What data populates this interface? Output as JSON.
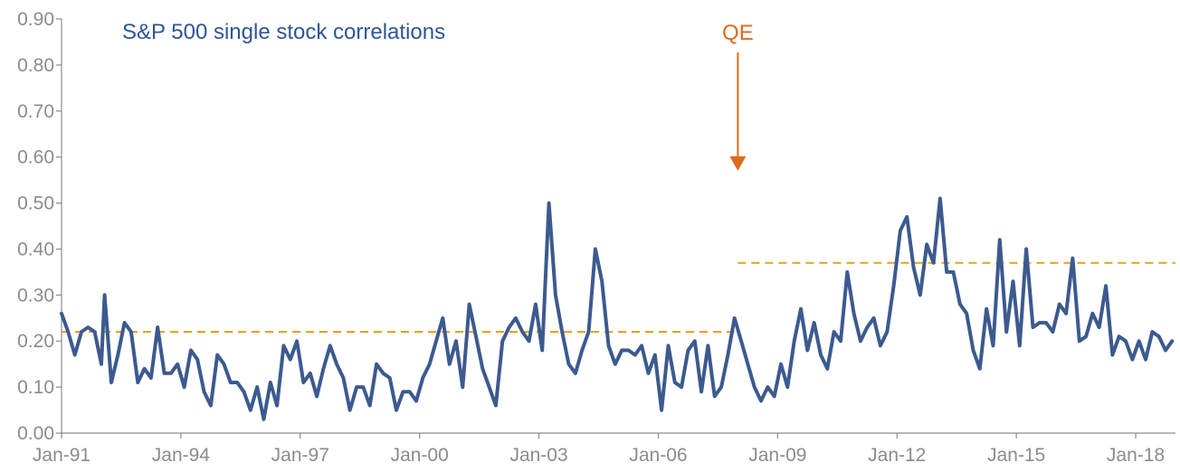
{
  "chart_data": {
    "type": "line",
    "title": "S&P 500 single stock correlations",
    "xlabel": "",
    "ylabel": "",
    "ylim": [
      0,
      0.9
    ],
    "xlim": [
      "1991-01",
      "2019-01"
    ],
    "yticks": [
      "0.00",
      "0.10",
      "0.20",
      "0.30",
      "0.40",
      "0.50",
      "0.60",
      "0.70",
      "0.80",
      "0.90"
    ],
    "xticks": [
      "Jan-91",
      "Jan-94",
      "Jan-97",
      "Jan-00",
      "Jan-03",
      "Jan-06",
      "Jan-09",
      "Jan-12",
      "Jan-15",
      "Jan-18"
    ],
    "grid": false,
    "legend": "none",
    "colors": {
      "series": "#3c5a8f",
      "average": "#e8a020",
      "annotation": "#e06a1c",
      "axis": "#8c8c8c"
    },
    "series": [
      {
        "values": [
          [
            "1991-01",
            0.26
          ],
          [
            "1991-03",
            0.22
          ],
          [
            "1991-05",
            0.17
          ],
          [
            "1991-07",
            0.22
          ],
          [
            "1991-09",
            0.23
          ],
          [
            "1991-11",
            0.22
          ],
          [
            "1992-01",
            0.15
          ],
          [
            "1992-02",
            0.3
          ],
          [
            "1992-04",
            0.11
          ],
          [
            "1992-06",
            0.17
          ],
          [
            "1992-08",
            0.24
          ],
          [
            "1992-10",
            0.22
          ],
          [
            "1992-12",
            0.11
          ],
          [
            "1993-02",
            0.14
          ],
          [
            "1993-04",
            0.12
          ],
          [
            "1993-06",
            0.23
          ],
          [
            "1993-08",
            0.13
          ],
          [
            "1993-10",
            0.13
          ],
          [
            "1993-12",
            0.15
          ],
          [
            "1994-02",
            0.1
          ],
          [
            "1994-04",
            0.18
          ],
          [
            "1994-06",
            0.16
          ],
          [
            "1994-08",
            0.09
          ],
          [
            "1994-10",
            0.06
          ],
          [
            "1994-12",
            0.17
          ],
          [
            "1995-02",
            0.15
          ],
          [
            "1995-04",
            0.11
          ],
          [
            "1995-06",
            0.11
          ],
          [
            "1995-08",
            0.09
          ],
          [
            "1995-10",
            0.05
          ],
          [
            "1995-12",
            0.1
          ],
          [
            "1996-02",
            0.03
          ],
          [
            "1996-04",
            0.11
          ],
          [
            "1996-06",
            0.06
          ],
          [
            "1996-08",
            0.19
          ],
          [
            "1996-10",
            0.16
          ],
          [
            "1996-12",
            0.2
          ],
          [
            "1997-02",
            0.11
          ],
          [
            "1997-04",
            0.13
          ],
          [
            "1997-06",
            0.08
          ],
          [
            "1997-08",
            0.14
          ],
          [
            "1997-10",
            0.19
          ],
          [
            "1997-12",
            0.15
          ],
          [
            "1998-02",
            0.12
          ],
          [
            "1998-04",
            0.05
          ],
          [
            "1998-06",
            0.1
          ],
          [
            "1998-08",
            0.1
          ],
          [
            "1998-10",
            0.06
          ],
          [
            "1998-12",
            0.15
          ],
          [
            "1999-02",
            0.13
          ],
          [
            "1999-04",
            0.12
          ],
          [
            "1999-06",
            0.05
          ],
          [
            "1999-08",
            0.09
          ],
          [
            "1999-10",
            0.09
          ],
          [
            "1999-12",
            0.07
          ],
          [
            "2000-02",
            0.12
          ],
          [
            "2000-04",
            0.15
          ],
          [
            "2000-06",
            0.2
          ],
          [
            "2000-08",
            0.25
          ],
          [
            "2000-10",
            0.15
          ],
          [
            "2000-12",
            0.2
          ],
          [
            "2001-02",
            0.1
          ],
          [
            "2001-04",
            0.28
          ],
          [
            "2001-06",
            0.21
          ],
          [
            "2001-08",
            0.14
          ],
          [
            "2001-10",
            0.1
          ],
          [
            "2001-12",
            0.06
          ],
          [
            "2002-02",
            0.2
          ],
          [
            "2002-04",
            0.23
          ],
          [
            "2002-06",
            0.25
          ],
          [
            "2002-08",
            0.22
          ],
          [
            "2002-10",
            0.2
          ],
          [
            "2002-12",
            0.28
          ],
          [
            "2003-02",
            0.18
          ],
          [
            "2003-04",
            0.5
          ],
          [
            "2003-06",
            0.3
          ],
          [
            "2003-08",
            0.22
          ],
          [
            "2003-10",
            0.15
          ],
          [
            "2003-12",
            0.13
          ],
          [
            "2004-02",
            0.18
          ],
          [
            "2004-04",
            0.22
          ],
          [
            "2004-06",
            0.4
          ],
          [
            "2004-08",
            0.33
          ],
          [
            "2004-10",
            0.19
          ],
          [
            "2004-12",
            0.15
          ],
          [
            "2005-02",
            0.18
          ],
          [
            "2005-04",
            0.18
          ],
          [
            "2005-06",
            0.17
          ],
          [
            "2005-08",
            0.19
          ],
          [
            "2005-10",
            0.13
          ],
          [
            "2005-12",
            0.17
          ],
          [
            "2006-02",
            0.05
          ],
          [
            "2006-04",
            0.19
          ],
          [
            "2006-06",
            0.11
          ],
          [
            "2006-08",
            0.1
          ],
          [
            "2006-10",
            0.18
          ],
          [
            "2006-12",
            0.2
          ],
          [
            "2007-02",
            0.09
          ],
          [
            "2007-04",
            0.19
          ],
          [
            "2007-06",
            0.08
          ],
          [
            "2007-08",
            0.1
          ],
          [
            "2007-10",
            0.17
          ],
          [
            "2007-12",
            0.25
          ],
          [
            "2008-02",
            0.2
          ],
          [
            "2008-04",
            0.15
          ],
          [
            "2008-06",
            0.1
          ],
          [
            "2008-08",
            0.07
          ],
          [
            "2008-10",
            0.1
          ],
          [
            "2008-12",
            0.08
          ],
          [
            "2009-02",
            0.15
          ],
          [
            "2009-04",
            0.1
          ],
          [
            "2009-06",
            0.2
          ],
          [
            "2009-08",
            0.27
          ],
          [
            "2009-10",
            0.18
          ],
          [
            "2009-12",
            0.24
          ],
          [
            "2010-02",
            0.17
          ],
          [
            "2010-04",
            0.14
          ],
          [
            "2010-06",
            0.22
          ],
          [
            "2010-08",
            0.2
          ],
          [
            "2010-10",
            0.35
          ],
          [
            "2010-12",
            0.26
          ],
          [
            "2011-02",
            0.2
          ],
          [
            "2011-04",
            0.23
          ],
          [
            "2011-06",
            0.25
          ],
          [
            "2011-08",
            0.19
          ],
          [
            "2011-10",
            0.22
          ],
          [
            "2011-12",
            0.32
          ],
          [
            "2012-02",
            0.44
          ],
          [
            "2012-04",
            0.47
          ],
          [
            "2012-06",
            0.36
          ],
          [
            "2012-08",
            0.3
          ],
          [
            "2012-10",
            0.41
          ],
          [
            "2012-12",
            0.37
          ],
          [
            "2013-02",
            0.51
          ],
          [
            "2013-04",
            0.35
          ],
          [
            "2013-06",
            0.35
          ],
          [
            "2013-08",
            0.28
          ],
          [
            "2013-10",
            0.26
          ],
          [
            "2013-12",
            0.18
          ],
          [
            "2014-02",
            0.14
          ],
          [
            "2014-04",
            0.27
          ],
          [
            "2014-06",
            0.19
          ],
          [
            "2014-08",
            0.42
          ],
          [
            "2014-10",
            0.22
          ],
          [
            "2014-12",
            0.33
          ],
          [
            "2015-02",
            0.19
          ],
          [
            "2015-04",
            0.4
          ],
          [
            "2015-06",
            0.23
          ],
          [
            "2015-08",
            0.24
          ],
          [
            "2015-10",
            0.24
          ],
          [
            "2015-12",
            0.22
          ],
          [
            "2016-02",
            0.28
          ],
          [
            "2016-04",
            0.26
          ],
          [
            "2016-06",
            0.38
          ],
          [
            "2016-08",
            0.2
          ],
          [
            "2016-10",
            0.21
          ],
          [
            "2016-12",
            0.26
          ],
          [
            "2017-02",
            0.23
          ],
          [
            "2017-04",
            0.32
          ],
          [
            "2017-06",
            0.17
          ],
          [
            "2017-08",
            0.21
          ],
          [
            "2017-10",
            0.2
          ],
          [
            "2017-12",
            0.16
          ],
          [
            "2018-02",
            0.2
          ],
          [
            "2018-04",
            0.16
          ],
          [
            "2018-06",
            0.22
          ],
          [
            "2018-08",
            0.21
          ],
          [
            "2018-10",
            0.18
          ],
          [
            "2018-12",
            0.2
          ]
        ]
      }
    ],
    "average_lines": [
      {
        "x_start": "1991-01",
        "x_end": "2007-12",
        "y": 0.22
      },
      {
        "x_start": "2008-01",
        "x_end": "2019-01",
        "y": 0.37
      }
    ],
    "annotations": [
      {
        "text": "QE",
        "x": "2008-01",
        "y_arrow_tip": 0.57
      }
    ]
  }
}
